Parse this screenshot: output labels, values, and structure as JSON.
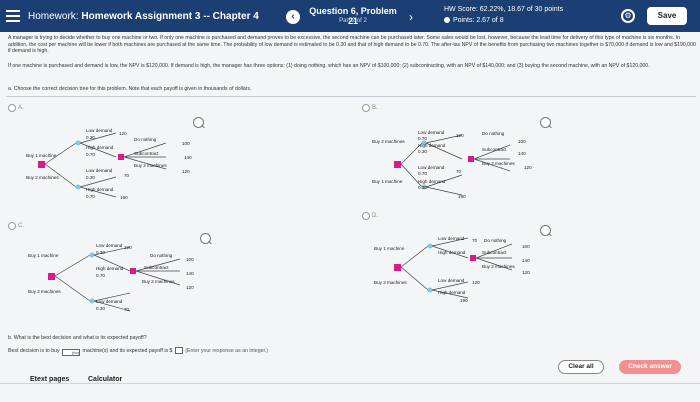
{
  "header": {
    "homework_prefix": "Homework:",
    "homework_title": "Homework Assignment 3 -- Chapter 4",
    "question_title": "Question 6, Problem 21",
    "question_part": "Part 2 of 2",
    "hw_score": "HW Score: 62.22%, 18.67 of 30 points",
    "points": "Points: 2.67 of 8",
    "save_label": "Save",
    "colors": {
      "bar": "#1c3f73"
    }
  },
  "problem": {
    "para1": "A manager is trying to decide whether to buy one machine or two. If only one machine is purchased and demand proves to be excessive, the second machine can be purchased later. Some sales would be lost, however, because the lead time for delivery of this type of machine is six months. In addition, the cost per machine will be lower if both machines are purchased at the same time. The probability of low demand is estimated to be 0.30 and that of high demand to be 0.70. The after-tax NPV of the benefits from purchasing two machines together is $70,000 if demand is low and $190,000 if demand is high.",
    "para2": "If one machine is purchased and demand is low, the NPV is $120,000. If demand is high, the manager has three options: (1) doing nothing, which has an NPV of $100,000; (2) subcontracting, with an NPV of $140,000; and (3) buying the second machine, with an NPV of $120,000.",
    "instruction": "a. Choose the correct decision tree for this problem. Note that each payoff is given in thousands of dollars."
  },
  "options": [
    {
      "letter": "A."
    },
    {
      "letter": "B."
    },
    {
      "letter": "C."
    },
    {
      "letter": "D."
    }
  ],
  "trees": {
    "t": {
      "buy1": "Buy 1 machine",
      "buy2": "Buy 2 machines",
      "low": "Low demand",
      "high": "High demand",
      "p30": "0.30",
      "p70": "0.70",
      "nothing": "Do nothing",
      "subcontract": "Subcontract",
      "buy2b": "Buy 2 machines",
      "v100": "100",
      "v140": "140",
      "v120": "120",
      "v70": "70",
      "v190": "190"
    }
  },
  "part_b": {
    "question": "b. What is the best decision and what is its expected payoff?",
    "answer_prefix": "Best decision is to buy",
    "answer_box": "(no)",
    "answer_mid": "machine(s) and its expected payoff is $",
    "answer_hint": "(Enter your response as an integer.)"
  },
  "footer": {
    "etext": "Etext pages",
    "calculator": "Calculator",
    "clear_all": "Clear all",
    "check_answer": "Check answer"
  }
}
